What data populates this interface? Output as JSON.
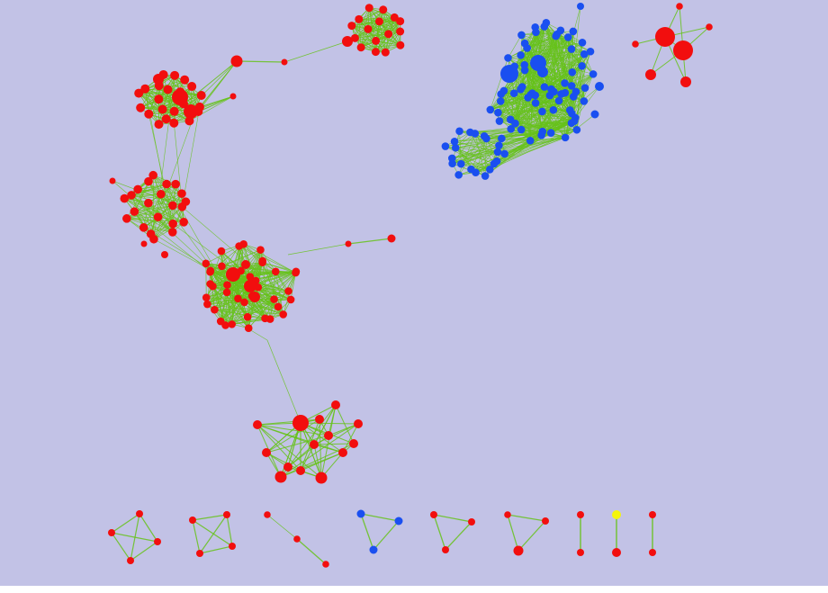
{
  "colors": {
    "background": "#c2c2e6",
    "edge": "#66c21a",
    "node_red": "#f20e0e",
    "node_blue": "#1a4ff0",
    "node_yellow": "#f5f50a",
    "bottom_strip": "#ffffff"
  },
  "graph": {
    "components": [
      {
        "id": "red-cluster-top-center",
        "color": "red",
        "node_count": 16
      },
      {
        "id": "red-cluster-upper-left",
        "color": "red",
        "node_count": 22
      },
      {
        "id": "red-cluster-middle-left",
        "color": "red",
        "node_count": 22
      },
      {
        "id": "red-cluster-center-hub",
        "color": "red",
        "node_count": 40
      },
      {
        "id": "red-cluster-lower",
        "color": "red",
        "node_count": 14
      },
      {
        "id": "blue-cluster-upper-right",
        "color": "blue",
        "node_count": 95
      },
      {
        "id": "red-star-top-right",
        "color": "red",
        "node_count": 7
      },
      {
        "id": "small-red-4-clique-a",
        "color": "red",
        "node_count": 4
      },
      {
        "id": "small-red-4-clique-b",
        "color": "red",
        "node_count": 4
      },
      {
        "id": "small-red-path",
        "color": "red",
        "node_count": 3
      },
      {
        "id": "small-blue-triangle",
        "color": "blue",
        "node_count": 3
      },
      {
        "id": "small-red-triangle-a",
        "color": "red",
        "node_count": 3
      },
      {
        "id": "small-red-triangle-b",
        "color": "red",
        "node_count": 3
      },
      {
        "id": "small-red-pair-a",
        "color": "red",
        "node_count": 2
      },
      {
        "id": "small-yellow-red-pair",
        "color": "mixed",
        "node_count": 2
      },
      {
        "id": "small-red-pair-b",
        "color": "red",
        "node_count": 2
      }
    ]
  }
}
